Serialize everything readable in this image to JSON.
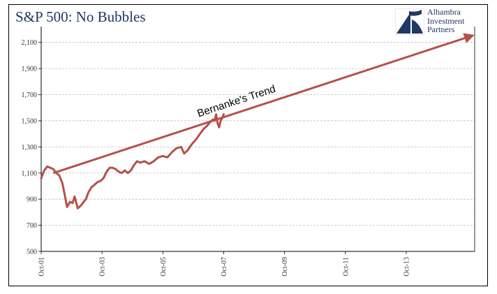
{
  "colors": {
    "series": "#b5504a",
    "title": "#1f3864",
    "grid": "#bdbdbd"
  },
  "chart_data": {
    "type": "line",
    "title": "S&P 500: No Bubbles",
    "xlabel": "",
    "ylabel": "",
    "ylim": [
      500,
      2200
    ],
    "xlim": [
      2001.75,
      2016.0
    ],
    "y_ticks": [
      {
        "value": 500,
        "label": "500"
      },
      {
        "value": 700,
        "label": "700"
      },
      {
        "value": 900,
        "label": "900"
      },
      {
        "value": 1100,
        "label": "1,100"
      },
      {
        "value": 1300,
        "label": "1,300"
      },
      {
        "value": 1500,
        "label": "1,500"
      },
      {
        "value": 1700,
        "label": "1,700"
      },
      {
        "value": 1900,
        "label": "1,900"
      },
      {
        "value": 2100,
        "label": "2,100"
      }
    ],
    "x_ticks": [
      {
        "value": 2001.75,
        "label": "Oct-01"
      },
      {
        "value": 2003.75,
        "label": "Oct-03"
      },
      {
        "value": 2005.75,
        "label": "Oct-05"
      },
      {
        "value": 2007.75,
        "label": "Oct-07"
      },
      {
        "value": 2009.75,
        "label": "Oct-09"
      },
      {
        "value": 2011.75,
        "label": "Oct-11"
      },
      {
        "value": 2013.75,
        "label": "Oct-13"
      }
    ],
    "series": [
      {
        "name": "S&P 500",
        "x": [
          2001.75,
          2001.85,
          2001.95,
          2002.05,
          2002.15,
          2002.25,
          2002.35,
          2002.45,
          2002.55,
          2002.6,
          2002.7,
          2002.78,
          2002.85,
          2002.95,
          2003.05,
          2003.15,
          2003.22,
          2003.3,
          2003.4,
          2003.5,
          2003.6,
          2003.7,
          2003.8,
          2003.9,
          2004.0,
          2004.1,
          2004.2,
          2004.3,
          2004.4,
          2004.5,
          2004.6,
          2004.7,
          2004.8,
          2004.9,
          2005.0,
          2005.15,
          2005.3,
          2005.45,
          2005.6,
          2005.75,
          2005.9,
          2006.05,
          2006.2,
          2006.35,
          2006.45,
          2006.55,
          2006.7,
          2006.85,
          2007.0,
          2007.1,
          2007.2,
          2007.3,
          2007.4,
          2007.45,
          2007.5,
          2007.55,
          2007.6,
          2007.65,
          2007.7,
          2007.75
        ],
        "values": [
          1060,
          1120,
          1150,
          1140,
          1130,
          1100,
          1080,
          1020,
          900,
          840,
          880,
          870,
          920,
          830,
          850,
          880,
          900,
          950,
          990,
          1010,
          1030,
          1040,
          1060,
          1110,
          1140,
          1140,
          1130,
          1110,
          1100,
          1120,
          1100,
          1120,
          1160,
          1190,
          1180,
          1190,
          1170,
          1190,
          1220,
          1230,
          1220,
          1260,
          1290,
          1300,
          1250,
          1270,
          1320,
          1360,
          1410,
          1440,
          1460,
          1490,
          1510,
          1500,
          1550,
          1480,
          1450,
          1500,
          1520,
          1550
        ]
      }
    ],
    "annotations": [
      {
        "label": "Bernanke's Trend",
        "type": "arrow",
        "from": {
          "x": 2002.15,
          "y": 1100
        },
        "to": {
          "x": 2015.9,
          "y": 2150
        }
      }
    ]
  },
  "logo": {
    "line1": "Alhambra",
    "line2": "Investment",
    "line3": "Partners"
  }
}
